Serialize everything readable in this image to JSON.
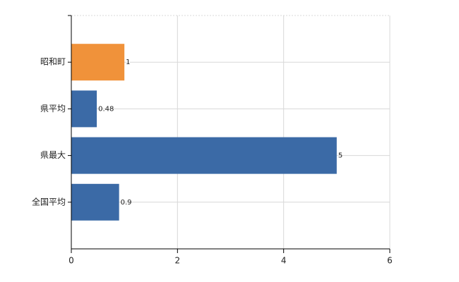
{
  "chart_data": {
    "type": "hbar",
    "categories": [
      "昭和町",
      "県平均",
      "県最大",
      "全国平均"
    ],
    "values": [
      1,
      0.48,
      5,
      0.9
    ],
    "colors": [
      "#f0923a",
      "#3b6aa6",
      "#3b6aa6",
      "#3b6aa6"
    ],
    "xlim": [
      0,
      6
    ],
    "xticks": [
      0,
      2,
      4,
      6
    ],
    "grid": true
  }
}
